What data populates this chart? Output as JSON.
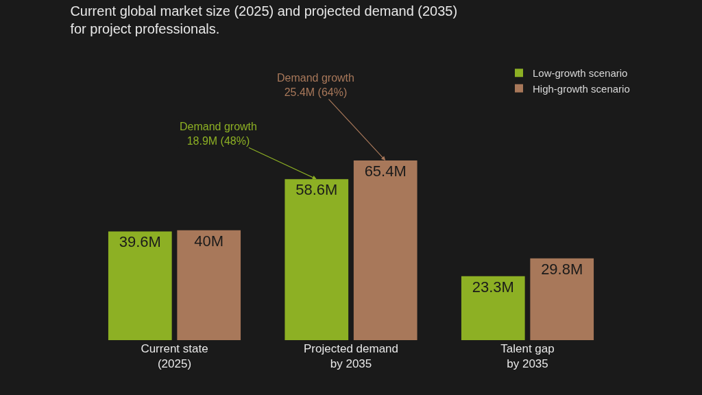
{
  "chart_data": {
    "type": "bar",
    "title": "Current global market size (2025) and projected demand (2035)\nfor project professionals.",
    "categories": [
      "Current state\n(2025)",
      "Projected demand\nby 2035",
      "Talent gap\nby 2035"
    ],
    "series": [
      {
        "name": "Low-growth scenario",
        "color": "#8db024",
        "values": [
          39.6,
          58.6,
          23.3
        ],
        "value_labels": [
          "39.6M",
          "58.6M",
          "23.3M"
        ]
      },
      {
        "name": "High-growth scenario",
        "color": "#a8785a",
        "values": [
          40,
          65.4,
          29.8
        ],
        "value_labels": [
          "40M",
          "65.4M",
          "29.8M"
        ]
      }
    ],
    "annotations": [
      "Demand growth\n18.9M (48%)",
      "Demand growth\n25.4M (64%)"
    ],
    "legend": "top right"
  }
}
